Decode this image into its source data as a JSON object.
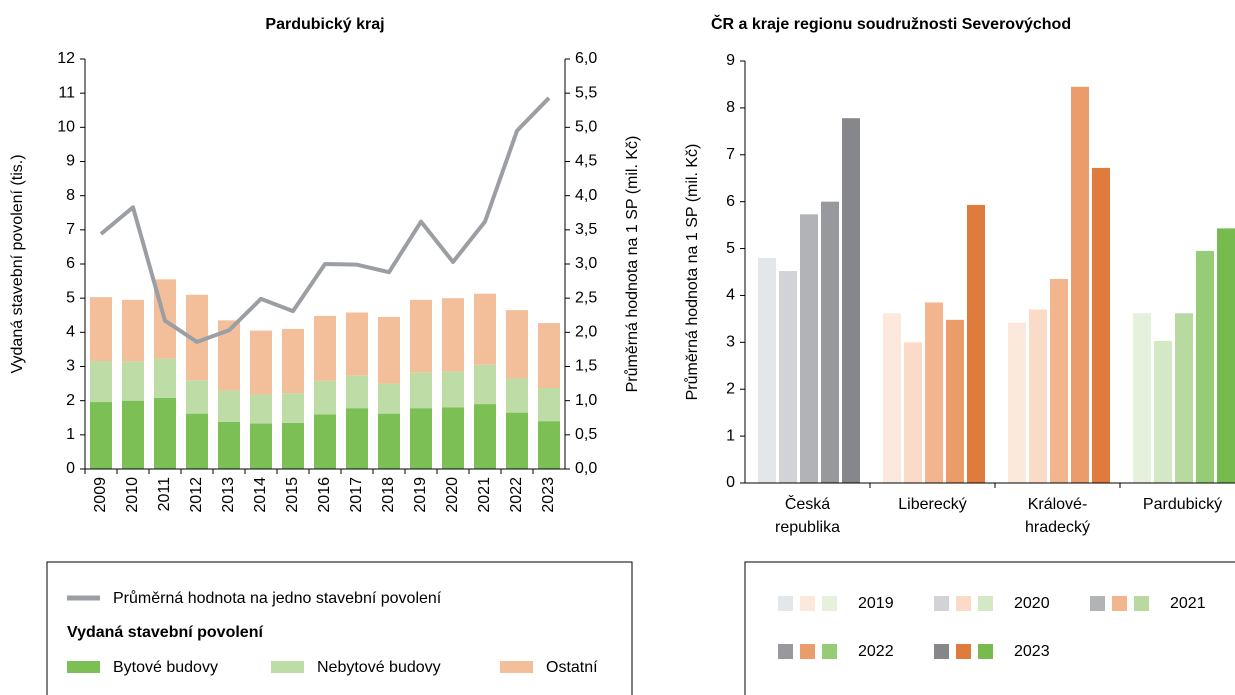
{
  "chart_data": [
    {
      "type": "stacked_bar",
      "title": "Pardubický kraj",
      "ylabel": "Vydaná stavební povolení (tis.)",
      "y2label": "Průměrná hodnota na 1 SP (mil. Kč)",
      "categories": [
        "2009",
        "2010",
        "2011",
        "2012",
        "2013",
        "2014",
        "2015",
        "2016",
        "2017",
        "2018",
        "2019",
        "2020",
        "2021",
        "2022",
        "2023"
      ],
      "ylim": [
        0,
        12
      ],
      "yticks": [
        0,
        1,
        2,
        3,
        4,
        5,
        6,
        7,
        8,
        9,
        10,
        11,
        12
      ],
      "y2lim": [
        0,
        6
      ],
      "y2ticks": [
        {
          "value": 0,
          "label": "0,0"
        },
        {
          "value": 0.5,
          "label": "0,5"
        },
        {
          "value": 1,
          "label": "1,0"
        },
        {
          "value": 1.5,
          "label": "1,5"
        },
        {
          "value": 2,
          "label": "2,0"
        },
        {
          "value": 2.5,
          "label": "2,5"
        },
        {
          "value": 3,
          "label": "3,0"
        },
        {
          "value": 3.5,
          "label": "3,5"
        },
        {
          "value": 4,
          "label": "4,0"
        },
        {
          "value": 4.5,
          "label": "4,5"
        },
        {
          "value": 5,
          "label": "5,0"
        },
        {
          "value": 5.5,
          "label": "5,5"
        },
        {
          "value": 6,
          "label": "6,0"
        }
      ],
      "legend_title": "Vydaná stavební povolení",
      "series": [
        {
          "name": "Průměrná hodnota na jedno stavební povolení",
          "type": "line",
          "axis": "y2",
          "color": "#9b9ea3",
          "values": [
            3.44,
            3.83,
            2.17,
            1.86,
            2.03,
            2.49,
            2.31,
            3.0,
            2.99,
            2.88,
            3.62,
            3.03,
            3.62,
            4.95,
            5.43
          ]
        },
        {
          "name": "Bytové budovy",
          "type": "bar",
          "color": "#7bbf55",
          "values": [
            1.96,
            2.0,
            2.08,
            1.62,
            1.38,
            1.33,
            1.35,
            1.6,
            1.78,
            1.62,
            1.78,
            1.8,
            1.9,
            1.65,
            1.4
          ]
        },
        {
          "name": "Nebytové budovy",
          "type": "bar",
          "color": "#bddca6",
          "values": [
            1.2,
            1.15,
            1.15,
            0.98,
            0.92,
            0.85,
            0.87,
            0.98,
            0.95,
            0.88,
            1.05,
            1.05,
            1.15,
            1.0,
            0.97
          ]
        },
        {
          "name": "Ostatní",
          "type": "bar",
          "color": "#f3bf9b",
          "values": [
            1.87,
            1.8,
            2.32,
            2.5,
            2.05,
            1.87,
            1.88,
            1.9,
            1.85,
            1.95,
            2.12,
            2.15,
            2.08,
            2.0,
            1.9
          ]
        }
      ]
    },
    {
      "type": "bar",
      "title": "ČR a kraje regionu soudružnosti Severovýchod",
      "ylabel": "Průměrná hodnota na 1 SP (mil. Kč)",
      "categories": [
        "Česká republika",
        "Liberecký",
        "Králové-hradecký",
        "Pardubický"
      ],
      "ylim": [
        0,
        9
      ],
      "yticks": [
        0,
        1,
        2,
        3,
        4,
        5,
        6,
        7,
        8,
        9
      ],
      "series": [
        {
          "name": "2019",
          "colors": [
            "#e3e6ea",
            "#fde9dc",
            "#fde9dc",
            "#e6f1dd"
          ],
          "values": [
            4.8,
            3.62,
            3.42,
            3.62
          ]
        },
        {
          "name": "2020",
          "colors": [
            "#d2d3d7",
            "#fadbc8",
            "#fadbc8",
            "#d3e8c4"
          ],
          "values": [
            4.52,
            3.0,
            3.7,
            3.03
          ]
        },
        {
          "name": "2021",
          "colors": [
            "#b1b3b7",
            "#f2b58d",
            "#f2b58d",
            "#b8daa0"
          ],
          "values": [
            5.73,
            3.85,
            4.35,
            3.62
          ]
        },
        {
          "name": "2022",
          "colors": [
            "#98999d",
            "#ea9c6b",
            "#ea9c6b",
            "#97cc76"
          ],
          "values": [
            6.0,
            3.48,
            8.45,
            4.95
          ]
        },
        {
          "name": "2023",
          "colors": [
            "#86878b",
            "#e07b3e",
            "#e07b3e",
            "#77bb4e"
          ],
          "values": [
            7.78,
            5.93,
            6.72,
            5.43
          ]
        }
      ]
    }
  ]
}
